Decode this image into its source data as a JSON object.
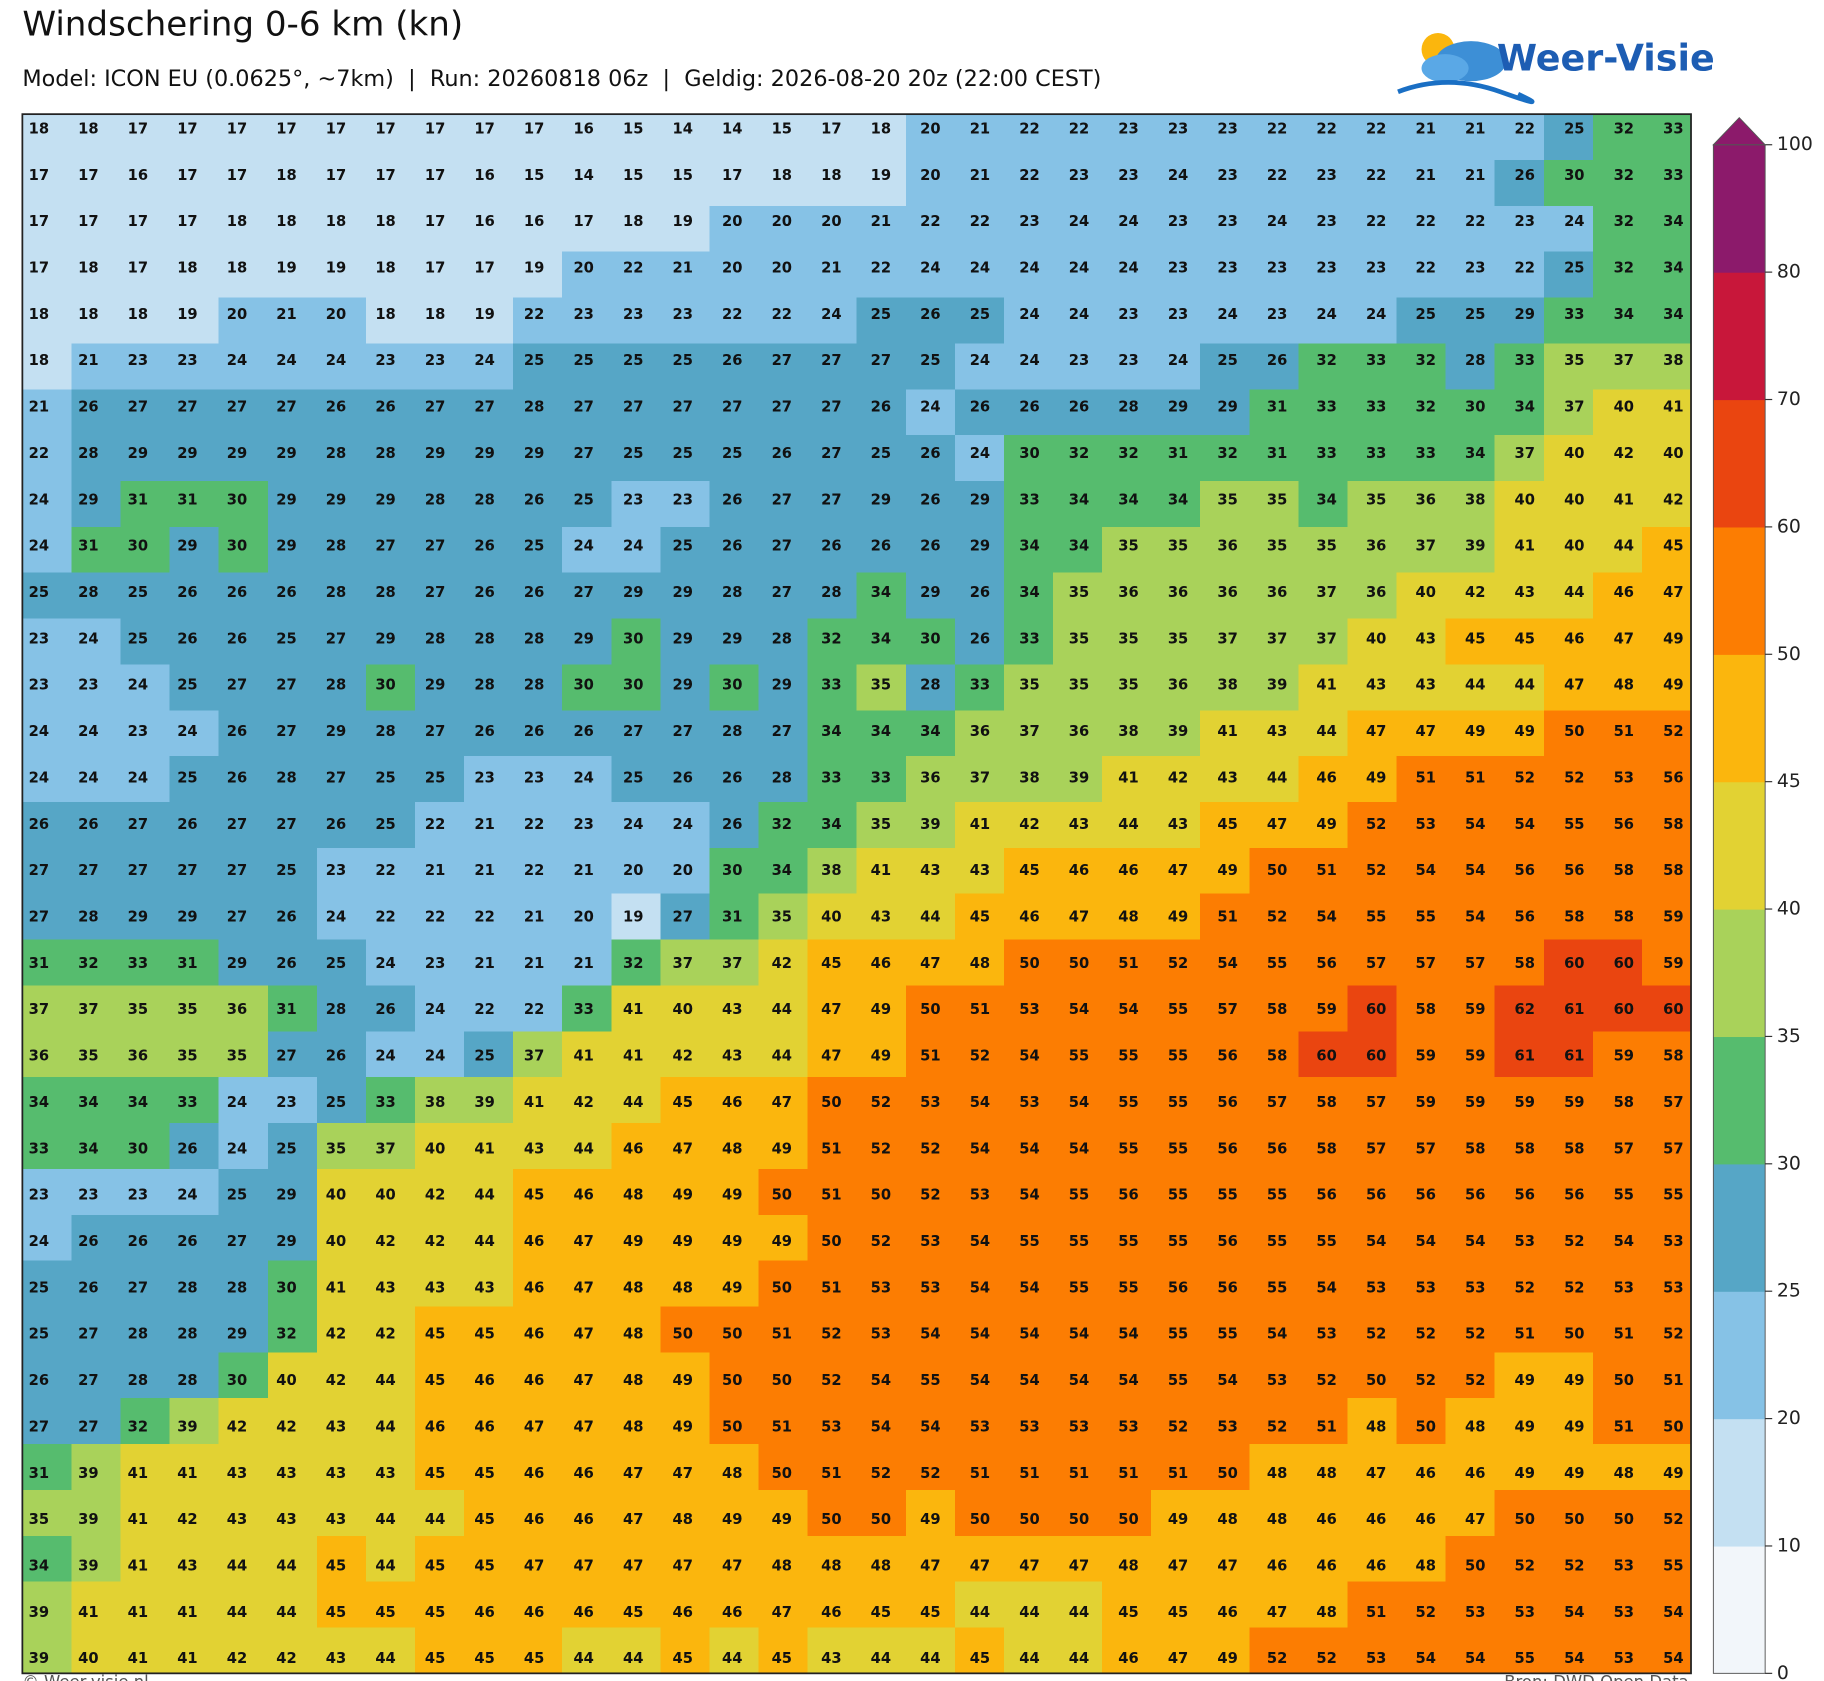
{
  "chart_data": {
    "type": "heatmap",
    "title": "Windschering 0-6 km (kn)",
    "subtitle": "Model: ICON EU (0.0625°, ~7km)  |  Run: 20260818 06z  |  Geldig: 2026-08-20 20z (22:00 CEST)",
    "logo": "Weer-Visie",
    "credit": "© Weer-visie.nl",
    "source": "Bron: DWD Open Data",
    "levels": [
      0,
      10,
      20,
      25,
      30,
      35,
      40,
      45,
      50,
      60,
      70,
      80,
      100
    ],
    "colors": [
      "#f2f6fa",
      "#c4e0f2",
      "#86c2e6",
      "#56a6c6",
      "#56bc6e",
      "#a9d25a",
      "#e2d233",
      "#fbb60d",
      "#fc7d02",
      "#ea4510",
      "#c8173a",
      "#8c1a6b"
    ],
    "values": [
      [
        18,
        18,
        17,
        17,
        17,
        17,
        17,
        17,
        17,
        17,
        17,
        16,
        15,
        14,
        14,
        15,
        17,
        18,
        20,
        21,
        22,
        22,
        23,
        23,
        23,
        22,
        22,
        22,
        21,
        21,
        22,
        25,
        32,
        33
      ],
      [
        17,
        17,
        16,
        17,
        17,
        18,
        17,
        17,
        17,
        16,
        15,
        14,
        15,
        15,
        17,
        18,
        18,
        19,
        20,
        21,
        22,
        23,
        23,
        24,
        23,
        22,
        23,
        22,
        21,
        21,
        26,
        30,
        32,
        33
      ],
      [
        17,
        17,
        17,
        17,
        18,
        18,
        18,
        18,
        17,
        16,
        16,
        17,
        18,
        19,
        20,
        20,
        20,
        21,
        22,
        22,
        23,
        24,
        24,
        23,
        23,
        24,
        23,
        22,
        22,
        22,
        23,
        24,
        32,
        34
      ],
      [
        17,
        18,
        17,
        18,
        18,
        19,
        19,
        18,
        17,
        17,
        19,
        20,
        22,
        21,
        20,
        20,
        21,
        22,
        24,
        24,
        24,
        24,
        24,
        23,
        23,
        23,
        23,
        23,
        22,
        23,
        22,
        25,
        32,
        34
      ],
      [
        18,
        18,
        18,
        19,
        20,
        21,
        20,
        18,
        18,
        19,
        22,
        23,
        23,
        23,
        22,
        22,
        24,
        25,
        26,
        25,
        24,
        24,
        23,
        23,
        24,
        23,
        24,
        24,
        25,
        25,
        29,
        33,
        34,
        34
      ],
      [
        18,
        21,
        23,
        23,
        24,
        24,
        24,
        23,
        23,
        24,
        25,
        25,
        25,
        25,
        26,
        27,
        27,
        27,
        25,
        24,
        24,
        23,
        23,
        24,
        25,
        26,
        32,
        33,
        32,
        28,
        33,
        35,
        37,
        38
      ],
      [
        21,
        26,
        27,
        27,
        27,
        27,
        26,
        26,
        27,
        27,
        28,
        27,
        27,
        27,
        27,
        27,
        27,
        26,
        24,
        26,
        26,
        26,
        28,
        29,
        29,
        31,
        33,
        33,
        32,
        30,
        34,
        37,
        40,
        41
      ],
      [
        22,
        28,
        29,
        29,
        29,
        29,
        28,
        28,
        29,
        29,
        29,
        27,
        25,
        25,
        25,
        26,
        27,
        25,
        26,
        24,
        30,
        32,
        32,
        31,
        32,
        31,
        33,
        33,
        33,
        34,
        37,
        40,
        42,
        40
      ],
      [
        24,
        29,
        31,
        31,
        30,
        29,
        29,
        29,
        28,
        28,
        26,
        25,
        23,
        23,
        26,
        27,
        27,
        29,
        26,
        29,
        33,
        34,
        34,
        34,
        35,
        35,
        34,
        35,
        36,
        38,
        40,
        40,
        41,
        42
      ],
      [
        24,
        31,
        30,
        29,
        30,
        29,
        28,
        27,
        27,
        26,
        25,
        24,
        24,
        25,
        26,
        27,
        26,
        26,
        26,
        29,
        34,
        34,
        35,
        35,
        36,
        35,
        35,
        36,
        37,
        39,
        41,
        40,
        44,
        45
      ],
      [
        25,
        28,
        25,
        26,
        26,
        26,
        28,
        28,
        27,
        26,
        26,
        27,
        29,
        29,
        28,
        27,
        28,
        34,
        29,
        26,
        34,
        35,
        36,
        36,
        36,
        36,
        37,
        36,
        40,
        42,
        43,
        44,
        46,
        47
      ],
      [
        23,
        24,
        25,
        26,
        26,
        25,
        27,
        29,
        28,
        28,
        28,
        29,
        30,
        29,
        29,
        28,
        32,
        34,
        30,
        26,
        33,
        35,
        35,
        35,
        37,
        37,
        37,
        40,
        43,
        45,
        45,
        46,
        47,
        49
      ],
      [
        23,
        23,
        24,
        25,
        27,
        27,
        28,
        30,
        29,
        28,
        28,
        30,
        30,
        29,
        30,
        29,
        33,
        35,
        28,
        33,
        35,
        35,
        35,
        36,
        38,
        39,
        41,
        43,
        43,
        44,
        44,
        47,
        48,
        49
      ],
      [
        24,
        24,
        23,
        24,
        26,
        27,
        29,
        28,
        27,
        26,
        26,
        26,
        27,
        27,
        28,
        27,
        34,
        34,
        34,
        36,
        37,
        36,
        38,
        39,
        41,
        43,
        44,
        47,
        47,
        49,
        49,
        50,
        51,
        52
      ],
      [
        24,
        24,
        24,
        25,
        26,
        28,
        27,
        25,
        25,
        23,
        23,
        24,
        25,
        26,
        26,
        28,
        33,
        33,
        36,
        37,
        38,
        39,
        41,
        42,
        43,
        44,
        46,
        49,
        51,
        51,
        52,
        52,
        53,
        56
      ],
      [
        26,
        26,
        27,
        26,
        27,
        27,
        26,
        25,
        22,
        21,
        22,
        23,
        24,
        24,
        26,
        32,
        34,
        35,
        39,
        41,
        42,
        43,
        44,
        43,
        45,
        47,
        49,
        52,
        53,
        54,
        54,
        55,
        56,
        58
      ],
      [
        27,
        27,
        27,
        27,
        27,
        25,
        23,
        22,
        21,
        21,
        22,
        21,
        20,
        20,
        30,
        34,
        38,
        41,
        43,
        43,
        45,
        46,
        46,
        47,
        49,
        50,
        51,
        52,
        54,
        54,
        56,
        56,
        58,
        58
      ],
      [
        27,
        28,
        29,
        29,
        27,
        26,
        24,
        22,
        22,
        22,
        21,
        20,
        19,
        27,
        31,
        35,
        40,
        43,
        44,
        45,
        46,
        47,
        48,
        49,
        51,
        52,
        54,
        55,
        55,
        54,
        56,
        58,
        58,
        59
      ],
      [
        31,
        32,
        33,
        31,
        29,
        26,
        25,
        24,
        23,
        21,
        21,
        21,
        32,
        37,
        37,
        42,
        45,
        46,
        47,
        48,
        50,
        50,
        51,
        52,
        54,
        55,
        56,
        57,
        57,
        57,
        58,
        60,
        60,
        59
      ],
      [
        37,
        37,
        35,
        35,
        36,
        31,
        28,
        26,
        24,
        22,
        22,
        33,
        41,
        40,
        43,
        44,
        47,
        49,
        50,
        51,
        53,
        54,
        54,
        55,
        57,
        58,
        59,
        60,
        58,
        59,
        62,
        61,
        60,
        60
      ],
      [
        36,
        35,
        36,
        35,
        35,
        27,
        26,
        24,
        24,
        25,
        37,
        41,
        41,
        42,
        43,
        44,
        47,
        49,
        51,
        52,
        54,
        55,
        55,
        55,
        56,
        58,
        60,
        60,
        59,
        59,
        61,
        61,
        59,
        58
      ],
      [
        34,
        34,
        34,
        33,
        24,
        23,
        25,
        33,
        38,
        39,
        41,
        42,
        44,
        45,
        46,
        47,
        50,
        52,
        53,
        54,
        53,
        54,
        55,
        55,
        56,
        57,
        58,
        57,
        59,
        59,
        59,
        59,
        58,
        57
      ],
      [
        33,
        34,
        30,
        26,
        24,
        25,
        35,
        37,
        40,
        41,
        43,
        44,
        46,
        47,
        48,
        49,
        51,
        52,
        52,
        54,
        54,
        54,
        55,
        55,
        56,
        56,
        58,
        57,
        57,
        58,
        58,
        58,
        57,
        57
      ],
      [
        23,
        23,
        23,
        24,
        25,
        29,
        40,
        40,
        42,
        44,
        45,
        46,
        48,
        49,
        49,
        50,
        51,
        50,
        52,
        53,
        54,
        55,
        56,
        55,
        55,
        55,
        56,
        56,
        56,
        56,
        56,
        56,
        55,
        55
      ],
      [
        24,
        26,
        26,
        26,
        27,
        29,
        40,
        42,
        42,
        44,
        46,
        47,
        49,
        49,
        49,
        49,
        50,
        52,
        53,
        54,
        55,
        55,
        55,
        55,
        56,
        55,
        55,
        54,
        54,
        54,
        53,
        52,
        54,
        53
      ],
      [
        25,
        26,
        27,
        28,
        28,
        30,
        41,
        43,
        43,
        43,
        46,
        47,
        48,
        48,
        49,
        50,
        51,
        53,
        53,
        54,
        54,
        55,
        55,
        56,
        56,
        55,
        54,
        53,
        53,
        53,
        52,
        52,
        53,
        53
      ],
      [
        25,
        27,
        28,
        28,
        29,
        32,
        42,
        42,
        45,
        45,
        46,
        47,
        48,
        50,
        50,
        51,
        52,
        53,
        54,
        54,
        54,
        54,
        54,
        55,
        55,
        54,
        53,
        52,
        52,
        52,
        51,
        50,
        51,
        52
      ],
      [
        26,
        27,
        28,
        28,
        30,
        40,
        42,
        44,
        45,
        46,
        46,
        47,
        48,
        49,
        50,
        50,
        52,
        54,
        55,
        54,
        54,
        54,
        54,
        55,
        54,
        53,
        52,
        50,
        52,
        52,
        49,
        49,
        50,
        51
      ],
      [
        27,
        27,
        32,
        39,
        42,
        42,
        43,
        44,
        46,
        46,
        47,
        47,
        48,
        49,
        50,
        51,
        53,
        54,
        54,
        53,
        53,
        53,
        53,
        52,
        53,
        52,
        51,
        48,
        50,
        48,
        49,
        49,
        51,
        50
      ],
      [
        31,
        39,
        41,
        41,
        43,
        43,
        43,
        43,
        45,
        45,
        46,
        46,
        47,
        47,
        48,
        50,
        51,
        52,
        52,
        51,
        51,
        51,
        51,
        51,
        50,
        48,
        48,
        47,
        46,
        46,
        49,
        49,
        48,
        49
      ],
      [
        35,
        39,
        41,
        42,
        43,
        43,
        43,
        44,
        44,
        45,
        46,
        46,
        47,
        48,
        49,
        49,
        50,
        50,
        49,
        50,
        50,
        50,
        50,
        49,
        48,
        48,
        46,
        46,
        46,
        47,
        50,
        50,
        50,
        52
      ],
      [
        34,
        39,
        41,
        43,
        44,
        44,
        45,
        44,
        45,
        45,
        47,
        47,
        47,
        47,
        47,
        48,
        48,
        48,
        47,
        47,
        47,
        47,
        48,
        47,
        47,
        46,
        46,
        46,
        48,
        50,
        52,
        52,
        53,
        55
      ],
      [
        39,
        41,
        41,
        41,
        44,
        44,
        45,
        45,
        45,
        46,
        46,
        46,
        45,
        46,
        46,
        47,
        46,
        45,
        45,
        44,
        44,
        44,
        45,
        45,
        46,
        47,
        48,
        51,
        52,
        53,
        53,
        54,
        53,
        54
      ],
      [
        39,
        40,
        41,
        41,
        42,
        42,
        43,
        44,
        45,
        45,
        45,
        44,
        44,
        45,
        44,
        45,
        43,
        44,
        44,
        45,
        44,
        44,
        46,
        47,
        49,
        52,
        52,
        53,
        54,
        54,
        55,
        54,
        53,
        54
      ]
    ]
  }
}
